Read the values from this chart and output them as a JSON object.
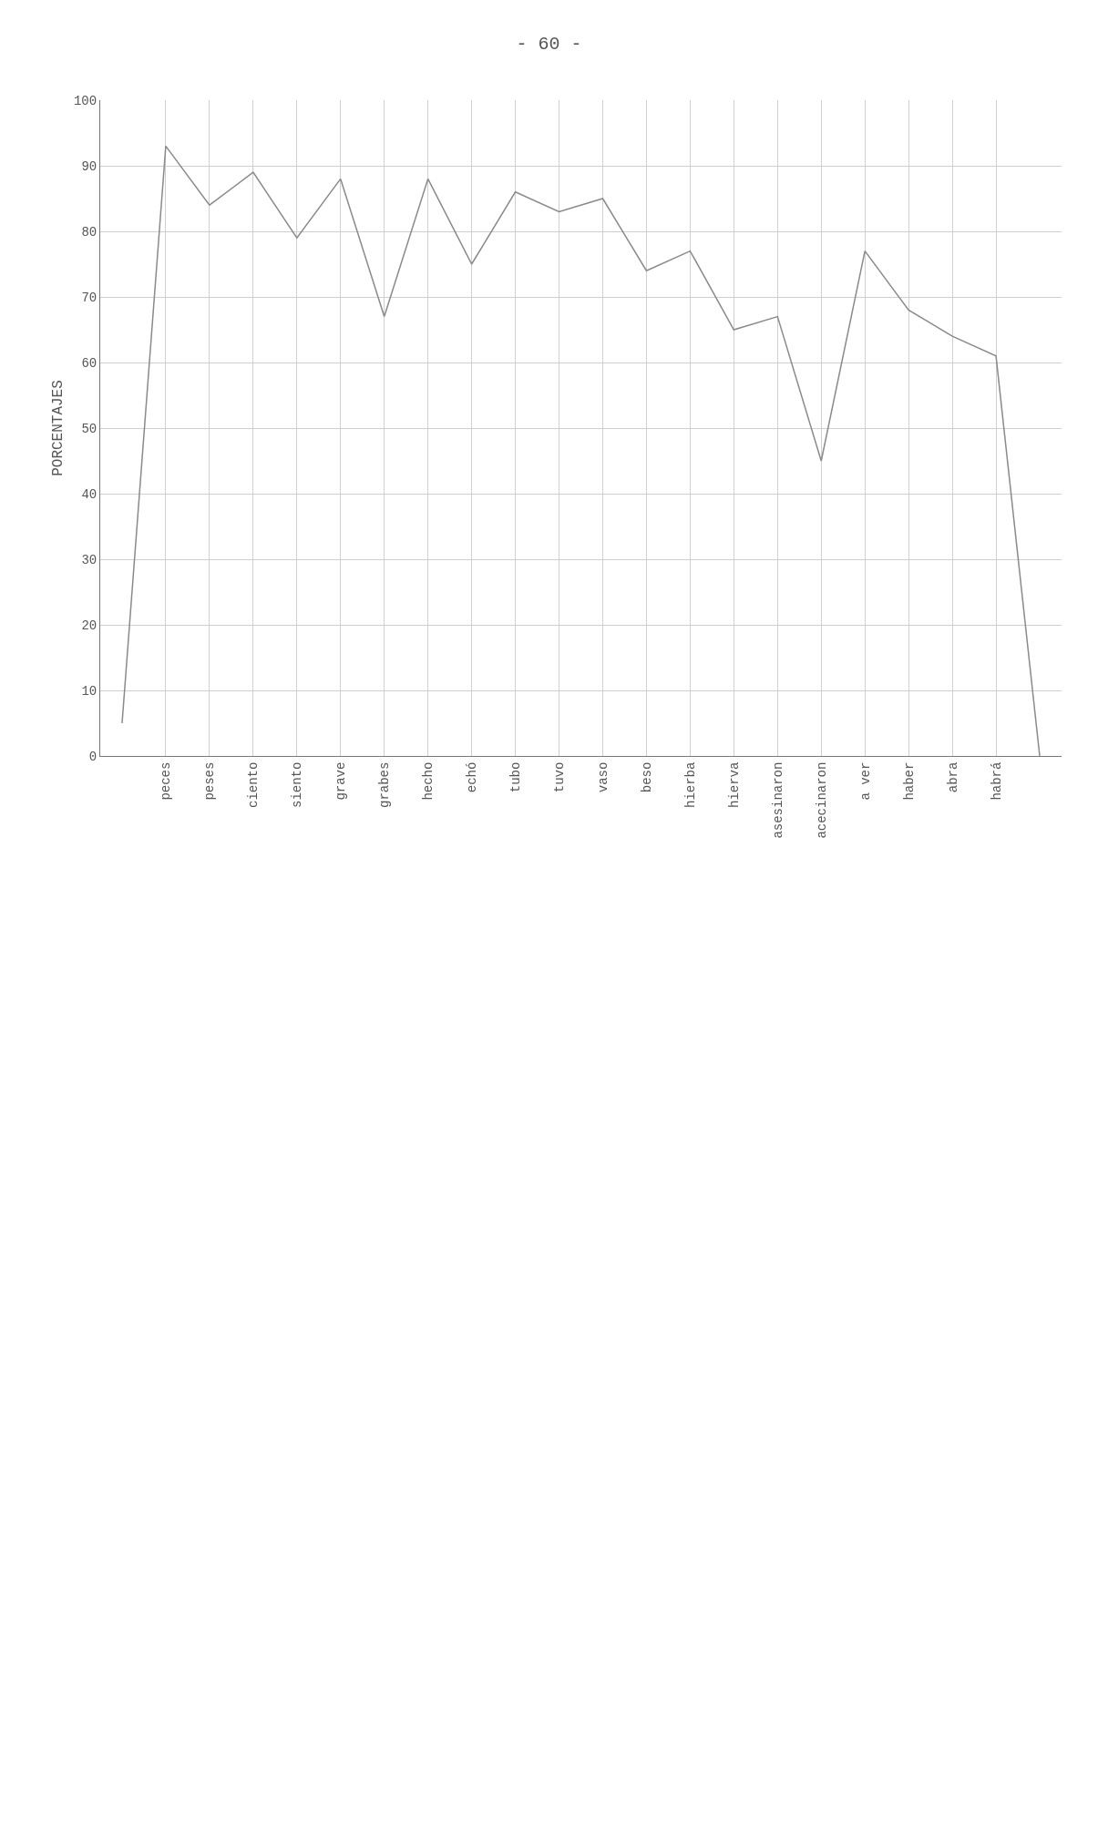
{
  "chart_data": {
    "type": "line",
    "title": "- 60 -",
    "ylabel": "PORCENTAJES",
    "categories": [
      null,
      "peces",
      "peses",
      "ciento",
      "siento",
      "grave",
      "grabes",
      "hecho",
      "echó",
      "tubo",
      "tuvo",
      "vaso",
      "beso",
      "hierba",
      "hierva",
      "asesinaron",
      "acecinaron",
      "a ver",
      "haber",
      "abra",
      "habrá",
      null
    ],
    "series": [
      {
        "color": "#8a8a8a",
        "values": [
          5,
          93,
          84,
          89,
          79,
          88,
          67,
          88,
          75,
          86,
          83,
          85,
          74,
          77,
          65,
          67,
          45,
          77,
          68,
          64,
          61,
          0
        ]
      }
    ],
    "ylim": [
      0,
      100
    ],
    "yticks": [
      0,
      10,
      20,
      30,
      40,
      50,
      60,
      70,
      80,
      90,
      100
    ],
    "grid": true,
    "marker": "none",
    "line_style": "solid"
  }
}
